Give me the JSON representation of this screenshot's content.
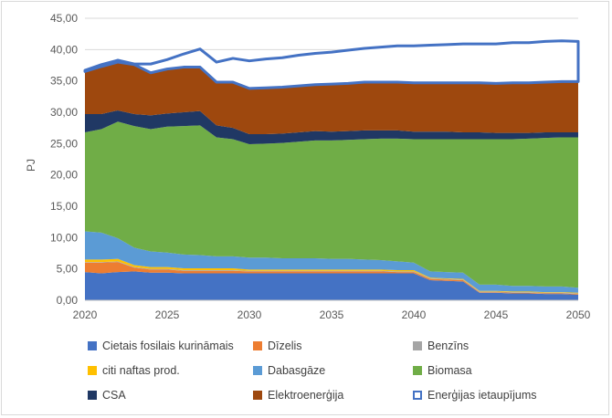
{
  "chart_data": {
    "type": "area",
    "stacked": true,
    "title": "",
    "xlabel": "",
    "ylabel": "PJ",
    "xlim": [
      2020,
      2050
    ],
    "ylim": [
      0,
      45
    ],
    "x_ticks": [
      "2020",
      "2025",
      "2030",
      "2035",
      "2040",
      "2045",
      "2050"
    ],
    "y_ticks": [
      "0,00",
      "5,00",
      "10,00",
      "15,00",
      "20,00",
      "25,00",
      "30,00",
      "35,00",
      "40,00",
      "45,00"
    ],
    "grid": "horizontal",
    "legend_position": "bottom",
    "x": [
      2020,
      2021,
      2022,
      2023,
      2024,
      2025,
      2026,
      2027,
      2028,
      2029,
      2030,
      2031,
      2032,
      2033,
      2034,
      2035,
      2036,
      2037,
      2038,
      2039,
      2040,
      2041,
      2042,
      2043,
      2044,
      2045,
      2046,
      2047,
      2048,
      2049,
      2050
    ],
    "series": [
      {
        "name": "Cietais fosilais kurināmais",
        "color": "#4472c4",
        "values": [
          4.5,
          4.3,
          4.5,
          4.6,
          4.4,
          4.4,
          4.3,
          4.3,
          4.3,
          4.3,
          4.3,
          4.3,
          4.3,
          4.3,
          4.3,
          4.3,
          4.3,
          4.3,
          4.3,
          4.3,
          4.3,
          3.2,
          3.1,
          3.0,
          1.2,
          1.2,
          1.1,
          1.1,
          1.0,
          1.0,
          0.9
        ]
      },
      {
        "name": "Dīzelis",
        "color": "#ed7d31",
        "values": [
          1.5,
          1.7,
          1.6,
          0.6,
          0.5,
          0.5,
          0.4,
          0.4,
          0.4,
          0.4,
          0.3,
          0.3,
          0.3,
          0.3,
          0.3,
          0.3,
          0.3,
          0.3,
          0.3,
          0.2,
          0.2,
          0.2,
          0.2,
          0.2,
          0.1,
          0.1,
          0.1,
          0.1,
          0.1,
          0.1,
          0.1
        ]
      },
      {
        "name": "Benzīns",
        "color": "#a5a5a5",
        "values": [
          0.1,
          0.1,
          0.1,
          0.1,
          0.1,
          0.1,
          0.1,
          0.1,
          0.1,
          0.1,
          0.1,
          0.1,
          0.1,
          0.1,
          0.1,
          0.1,
          0.1,
          0.1,
          0.1,
          0.1,
          0.1,
          0.1,
          0.1,
          0.1,
          0.1,
          0.1,
          0.1,
          0.1,
          0.1,
          0.1,
          0.1
        ]
      },
      {
        "name": "citi naftas prod.",
        "color": "#ffc000",
        "values": [
          0.4,
          0.4,
          0.4,
          0.3,
          0.3,
          0.3,
          0.3,
          0.3,
          0.3,
          0.3,
          0.2,
          0.2,
          0.2,
          0.2,
          0.2,
          0.2,
          0.2,
          0.2,
          0.2,
          0.2,
          0.2,
          0.1,
          0.1,
          0.1,
          0.1,
          0.1,
          0.1,
          0.1,
          0.1,
          0.1,
          0.1
        ]
      },
      {
        "name": "Dabasgāze",
        "color": "#5b9bd5",
        "values": [
          4.5,
          4.3,
          3.3,
          2.8,
          2.5,
          2.3,
          2.2,
          2.1,
          1.9,
          1.9,
          1.9,
          1.9,
          1.8,
          1.8,
          1.8,
          1.7,
          1.7,
          1.6,
          1.5,
          1.4,
          1.2,
          1.0,
          1.0,
          1.0,
          1.0,
          1.0,
          0.9,
          0.9,
          0.9,
          0.9,
          0.8
        ]
      },
      {
        "name": "Biomasa",
        "color": "#70ad47",
        "values": [
          15.8,
          16.5,
          18.6,
          19.4,
          19.5,
          20.1,
          20.5,
          20.7,
          19.0,
          18.7,
          18.1,
          18.2,
          18.4,
          18.6,
          18.8,
          18.9,
          19.0,
          19.2,
          19.4,
          19.6,
          19.7,
          21.1,
          21.2,
          21.3,
          23.2,
          23.2,
          23.4,
          23.5,
          23.7,
          23.8,
          24.0
        ]
      },
      {
        "name": "CSA",
        "color": "#203864",
        "values": [
          2.9,
          2.4,
          1.8,
          1.9,
          2.2,
          2.1,
          2.2,
          2.3,
          1.9,
          1.8,
          1.6,
          1.5,
          1.5,
          1.5,
          1.5,
          1.4,
          1.4,
          1.4,
          1.3,
          1.3,
          1.2,
          1.2,
          1.2,
          1.1,
          1.1,
          1.0,
          1.0,
          0.9,
          0.9,
          0.8,
          0.8
        ]
      },
      {
        "name": "Elektroenerģija",
        "color": "#9e480e",
        "values": [
          6.8,
          7.6,
          7.7,
          7.9,
          6.8,
          7.1,
          7.2,
          7.0,
          6.9,
          7.3,
          7.3,
          7.4,
          7.4,
          7.4,
          7.4,
          7.6,
          7.6,
          7.7,
          7.7,
          7.7,
          7.8,
          7.8,
          7.8,
          7.9,
          7.9,
          7.9,
          8.0,
          8.0,
          8.0,
          8.1,
          8.1
        ]
      },
      {
        "name": "Enerģijas ietaupījums",
        "color": "#4472c4",
        "style": "outline",
        "values": [
          0.2,
          0.3,
          0.3,
          0.1,
          1.4,
          1.5,
          2.1,
          2.9,
          3.2,
          3.8,
          4.4,
          4.6,
          4.7,
          4.9,
          5.0,
          5.1,
          5.3,
          5.4,
          5.6,
          5.8,
          5.9,
          6.0,
          6.1,
          6.2,
          6.2,
          6.3,
          6.4,
          6.4,
          6.5,
          6.5,
          6.4
        ]
      }
    ]
  }
}
